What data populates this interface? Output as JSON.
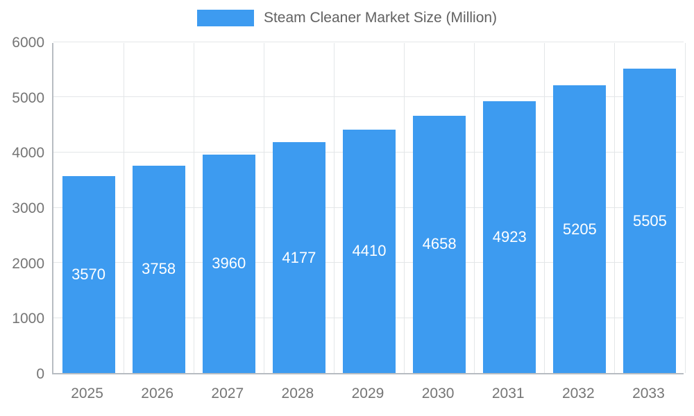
{
  "chart_data": {
    "type": "bar",
    "title": "Steam Cleaner Market Size (Million)",
    "categories": [
      "2025",
      "2026",
      "2027",
      "2028",
      "2029",
      "2030",
      "2031",
      "2032",
      "2033"
    ],
    "values": [
      3570,
      3758,
      3960,
      4177,
      4410,
      4658,
      4923,
      5205,
      5505
    ],
    "xlabel": "",
    "ylabel": "",
    "ylim": [
      0,
      6000
    ],
    "ytick_step": 1000,
    "grid": true,
    "legend_position": "top",
    "bar_color": "#3D9BF0",
    "value_label_color": "#ffffff",
    "axis_label_color": "#757575"
  }
}
